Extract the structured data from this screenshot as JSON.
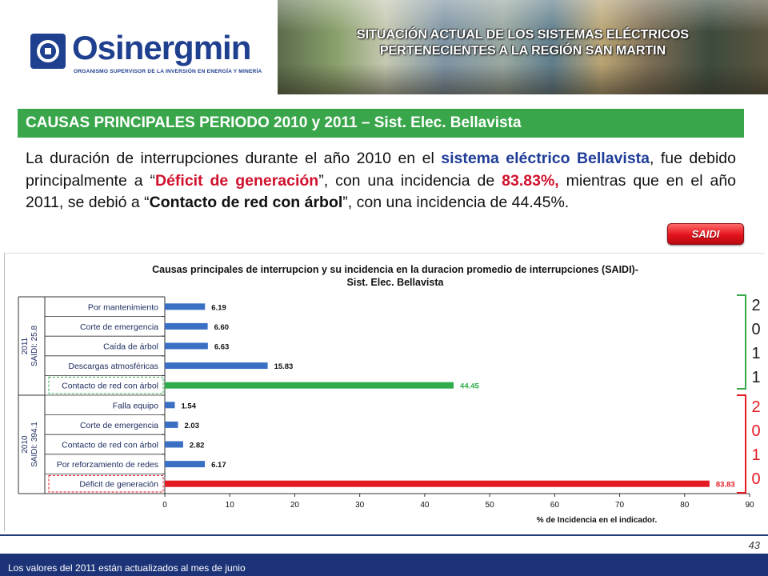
{
  "header": {
    "logo_text": "Osinergmin",
    "logo_subtitle": "ORGANISMO SUPERVISOR DE LA INVERSIÓN EN ENERGÍA Y MINERÍA",
    "banner_line1": "SITUACIÓN ACTUAL DE LOS SISTEMAS ELÉCTRICOS",
    "banner_line2": "PERTENECIENTES A LA REGIÓN SAN MARTIN"
  },
  "section": {
    "title": "CAUSAS PRINCIPALES PERIODO 2010 y 2011 – Sist. Elec. Bellavista",
    "p1": "La duración de interrupciones durante el año 2010 en el ",
    "p_blue": "sistema eléctrico Bellavista",
    "p2": ", fue debido principalmente a “",
    "p_red1": "Déficit de generación",
    "p3": "”, con una incidencia de ",
    "p_red2": "83.83%,",
    "p4": " mientras que en el año 2011, se debió a “",
    "p_bold": "Contacto de red con árbol",
    "p5": "”, con una incidencia de 44.45%.",
    "saidi_button": "SAIDI"
  },
  "chart_data": {
    "type": "bar",
    "orientation": "horizontal",
    "title_line1": "Causas principales de interrupcion y su incidencia en  la duracion promedio de interrupciones (SAIDI)-",
    "title_line2": "Sist. Elec.  Bellavista",
    "xlabel": "% de Incidencia en el indicador.",
    "xlim": [
      0,
      90
    ],
    "xticks": [
      0,
      10,
      20,
      30,
      40,
      50,
      60,
      70,
      80,
      90
    ],
    "grid": false,
    "groups": [
      {
        "label_line1": "2011",
        "label_line2": "SAIDI: 25.8",
        "categories": [
          "Por mantenimiento",
          "Corte de emergencia",
          "Caída de árbol",
          "Descargas atmosféricas",
          "Contacto de red con árbol"
        ],
        "values": [
          6.19,
          6.6,
          6.63,
          15.83,
          44.45
        ],
        "value_labels": [
          "6.19",
          "6.60",
          "6.63",
          "15.83",
          "44.45"
        ],
        "highlight_index": 4,
        "highlight_color": "#2eac4c"
      },
      {
        "label_line1": "2010",
        "label_line2": "SAIDI: 394.1",
        "categories": [
          "Falla equipo",
          "Corte de emergencia",
          "Contacto de red con árbol",
          "Por reforzamiento de redes",
          "Déficit de generación"
        ],
        "values": [
          1.54,
          2.03,
          2.82,
          6.17,
          83.83
        ],
        "value_labels": [
          "1.54",
          "2.03",
          "2.82",
          "6.17",
          "83.83"
        ],
        "highlight_index": 4,
        "highlight_color": "#e41b23"
      }
    ],
    "bar_color": "#3a6fc4",
    "year_side_labels": {
      "top": [
        "2",
        "0",
        "1",
        "1"
      ],
      "bottom": [
        "2",
        "0",
        "1",
        "0"
      ]
    }
  },
  "footer": {
    "page_number": "43",
    "note": "Los valores del 2011 están actualizados al mes de junio"
  }
}
